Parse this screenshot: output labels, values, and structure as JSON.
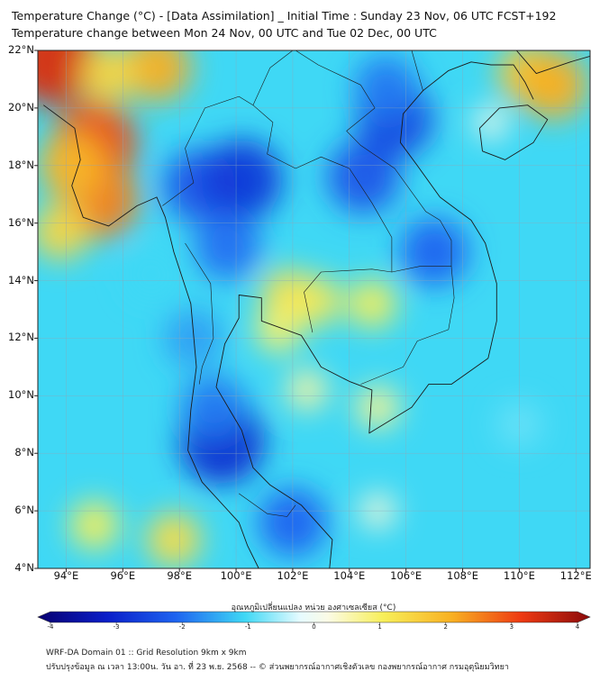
{
  "header": {
    "title_line1": "Temperature Change (°C) - [Data Assimilation] _ Initial Time : Sunday 23 Nov, 06 UTC FCST+192",
    "title_line2": "Temperature change between Mon 24 Nov, 00 UTC and Tue 02 Dec, 00 UTC"
  },
  "map": {
    "lat_labels": [
      "22°N",
      "20°N",
      "18°N",
      "16°N",
      "14°N",
      "12°N",
      "10°N",
      "8°N",
      "6°N",
      "4°N"
    ],
    "lon_labels": [
      "94°E",
      "96°E",
      "98°E",
      "100°E",
      "102°E",
      "104°E",
      "106°E",
      "108°E",
      "110°E",
      "112°E"
    ],
    "lat_range": [
      4,
      22
    ],
    "lon_range": [
      93,
      112.5
    ],
    "background_color": "#3fd8f5",
    "anomalies": [
      {
        "lon": 93.5,
        "lat": 21.7,
        "value": 3.2
      },
      {
        "lon": 95.0,
        "lat": 18.8,
        "value": 2.8
      },
      {
        "lon": 95.2,
        "lat": 16.8,
        "value": 2.4
      },
      {
        "lon": 94.2,
        "lat": 18.0,
        "value": 1.9
      },
      {
        "lon": 97.2,
        "lat": 21.4,
        "value": 2.0
      },
      {
        "lon": 93.8,
        "lat": 15.7,
        "value": 1.4
      },
      {
        "lon": 95.5,
        "lat": 21.2,
        "value": 1.4
      },
      {
        "lon": 110.3,
        "lat": 21.2,
        "value": 1.6
      },
      {
        "lon": 111.2,
        "lat": 20.8,
        "value": 2.0
      },
      {
        "lon": 101.8,
        "lat": 13.5,
        "value": 1.2
      },
      {
        "lon": 102.8,
        "lat": 13.3,
        "value": 1.1
      },
      {
        "lon": 101.5,
        "lat": 12.3,
        "value": 0.9
      },
      {
        "lon": 104.8,
        "lat": 13.2,
        "value": 1.0
      },
      {
        "lon": 97.8,
        "lat": 5.0,
        "value": 1.3
      },
      {
        "lon": 95.0,
        "lat": 5.5,
        "value": 1.0
      },
      {
        "lon": 105.0,
        "lat": 9.6,
        "value": 0.7
      },
      {
        "lon": 102.5,
        "lat": 10.2,
        "value": 0.6
      },
      {
        "lon": 98.7,
        "lat": 17.3,
        "value": -2.2
      },
      {
        "lon": 100.2,
        "lat": 17.5,
        "value": -2.6
      },
      {
        "lon": 104.5,
        "lat": 17.6,
        "value": -2.2
      },
      {
        "lon": 105.6,
        "lat": 19.6,
        "value": -2.4
      },
      {
        "lon": 105.3,
        "lat": 20.7,
        "value": -1.8
      },
      {
        "lon": 107.0,
        "lat": 15.0,
        "value": -2.0
      },
      {
        "lon": 99.5,
        "lat": 8.4,
        "value": -2.8
      },
      {
        "lon": 99.2,
        "lat": 9.6,
        "value": -1.8
      },
      {
        "lon": 102.0,
        "lat": 5.6,
        "value": -2.0
      },
      {
        "lon": 99.7,
        "lat": 15.2,
        "value": -1.9
      },
      {
        "lon": 98.5,
        "lat": 12.0,
        "value": -1.5
      },
      {
        "lon": 97.0,
        "lat": 14.2,
        "value": -1.0
      },
      {
        "lon": 110.0,
        "lat": 9.0,
        "value": -0.8
      },
      {
        "lon": 105.0,
        "lat": 6.0,
        "value": 0.3
      },
      {
        "lon": 109.0,
        "lat": 19.5,
        "value": 0.2
      }
    ],
    "coastlines": [
      [
        [
          93.2,
          20.1
        ],
        [
          94.3,
          19.3
        ],
        [
          94.5,
          18.2
        ],
        [
          94.2,
          17.3
        ],
        [
          94.6,
          16.2
        ],
        [
          95.5,
          15.9
        ],
        [
          96.5,
          16.6
        ],
        [
          97.2,
          16.9
        ],
        [
          97.5,
          16.2
        ],
        [
          97.8,
          15.0
        ],
        [
          98.4,
          13.2
        ],
        [
          98.6,
          11.0
        ],
        [
          98.4,
          9.5
        ],
        [
          98.3,
          8.1
        ],
        [
          98.8,
          7.0
        ],
        [
          100.1,
          5.6
        ],
        [
          100.4,
          4.8
        ],
        [
          100.8,
          4.0
        ]
      ],
      [
        [
          103.3,
          4.0
        ],
        [
          103.4,
          5.0
        ],
        [
          102.3,
          6.2
        ],
        [
          101.2,
          6.9
        ],
        [
          100.6,
          7.5
        ],
        [
          100.2,
          8.8
        ],
        [
          99.3,
          10.3
        ],
        [
          99.6,
          11.8
        ],
        [
          100.1,
          12.7
        ],
        [
          100.1,
          13.5
        ],
        [
          100.9,
          13.4
        ],
        [
          100.9,
          12.6
        ],
        [
          102.3,
          12.1
        ],
        [
          103.0,
          11.0
        ],
        [
          104.0,
          10.5
        ],
        [
          104.8,
          10.2
        ],
        [
          104.7,
          8.7
        ],
        [
          106.2,
          9.6
        ],
        [
          106.8,
          10.4
        ],
        [
          107.6,
          10.4
        ],
        [
          108.9,
          11.3
        ],
        [
          109.2,
          12.6
        ],
        [
          109.2,
          13.9
        ],
        [
          108.8,
          15.3
        ],
        [
          108.3,
          16.1
        ],
        [
          107.2,
          16.9
        ],
        [
          106.4,
          18.0
        ],
        [
          105.8,
          18.8
        ],
        [
          105.9,
          19.8
        ],
        [
          106.6,
          20.6
        ],
        [
          107.5,
          21.3
        ],
        [
          108.3,
          21.6
        ],
        [
          109.0,
          21.5
        ],
        [
          109.8,
          21.5
        ],
        [
          110.2,
          20.9
        ],
        [
          110.5,
          20.3
        ]
      ],
      [
        [
          108.7,
          18.5
        ],
        [
          108.6,
          19.3
        ],
        [
          109.3,
          20.0
        ],
        [
          110.3,
          20.1
        ],
        [
          111.0,
          19.6
        ],
        [
          110.5,
          18.8
        ],
        [
          109.5,
          18.2
        ],
        [
          108.7,
          18.5
        ]
      ],
      [
        [
          109.9,
          22.0
        ],
        [
          110.6,
          21.2
        ],
        [
          111.8,
          21.6
        ],
        [
          112.5,
          21.8
        ]
      ]
    ],
    "borders": [
      [
        [
          97.4,
          16.6
        ],
        [
          98.5,
          17.4
        ],
        [
          98.2,
          18.6
        ],
        [
          98.9,
          20.0
        ],
        [
          100.1,
          20.4
        ],
        [
          100.6,
          20.1
        ],
        [
          101.2,
          21.4
        ],
        [
          102.0,
          22.0
        ]
      ],
      [
        [
          100.6,
          20.1
        ],
        [
          101.3,
          19.5
        ],
        [
          101.1,
          18.4
        ],
        [
          102.1,
          17.9
        ],
        [
          103.0,
          18.3
        ],
        [
          104.0,
          17.9
        ],
        [
          104.8,
          16.7
        ],
        [
          105.5,
          15.5
        ],
        [
          105.5,
          14.3
        ],
        [
          104.8,
          14.4
        ],
        [
          103.0,
          14.3
        ],
        [
          102.4,
          13.6
        ],
        [
          102.7,
          12.2
        ]
      ],
      [
        [
          98.2,
          15.3
        ],
        [
          99.1,
          13.9
        ],
        [
          99.2,
          12.0
        ],
        [
          98.8,
          11.0
        ],
        [
          98.7,
          10.4
        ]
      ],
      [
        [
          100.1,
          6.6
        ],
        [
          101.1,
          5.9
        ],
        [
          101.8,
          5.8
        ],
        [
          102.1,
          6.2
        ]
      ],
      [
        [
          105.5,
          14.3
        ],
        [
          106.5,
          14.5
        ],
        [
          107.6,
          14.5
        ],
        [
          107.7,
          13.4
        ],
        [
          107.5,
          12.3
        ],
        [
          106.4,
          11.9
        ],
        [
          105.9,
          11.0
        ],
        [
          104.4,
          10.4
        ]
      ],
      [
        [
          107.6,
          14.5
        ],
        [
          107.6,
          15.4
        ],
        [
          107.2,
          16.1
        ],
        [
          106.7,
          16.4
        ],
        [
          105.6,
          17.9
        ],
        [
          104.4,
          18.7
        ],
        [
          103.9,
          19.2
        ],
        [
          104.9,
          20.0
        ],
        [
          104.4,
          20.8
        ],
        [
          102.9,
          21.5
        ],
        [
          102.1,
          22.0
        ]
      ],
      [
        [
          106.6,
          20.6
        ],
        [
          106.2,
          22.0
        ]
      ]
    ]
  },
  "colorbar": {
    "title": "อุณหภูมิเปลี่ยนแปลง หน่วย องศาเซลเซียส (°C)",
    "ticks": [
      "-4",
      "-3",
      "-2",
      "-1",
      "0",
      "1",
      "2",
      "3",
      "4"
    ],
    "min": -4,
    "max": 4,
    "stops": [
      {
        "v": -4,
        "c": "#080070"
      },
      {
        "v": -3,
        "c": "#0a1ec8"
      },
      {
        "v": -2,
        "c": "#1e64f0"
      },
      {
        "v": -1,
        "c": "#3fd8f5"
      },
      {
        "v": -0.2,
        "c": "#e6fbff"
      },
      {
        "v": 0.2,
        "c": "#fbfbe6"
      },
      {
        "v": 1,
        "c": "#f7ef5a"
      },
      {
        "v": 2,
        "c": "#f8b022"
      },
      {
        "v": 3,
        "c": "#ee3a12"
      },
      {
        "v": 4,
        "c": "#8a0a0a"
      }
    ]
  },
  "footer": {
    "line1": "WRF-DA Domain 01 :: Grid Resolution 9km x 9km",
    "line2": "ปรับปรุงข้อมูล ณ เวลา 13:00น. วัน อา. ที่ 23 พ.ย. 2568 -- © ส่วนพยากรณ์อากาศเชิงตัวเลข กองพยากรณ์อากาศ กรมอุตุนิยมวิทยา"
  }
}
